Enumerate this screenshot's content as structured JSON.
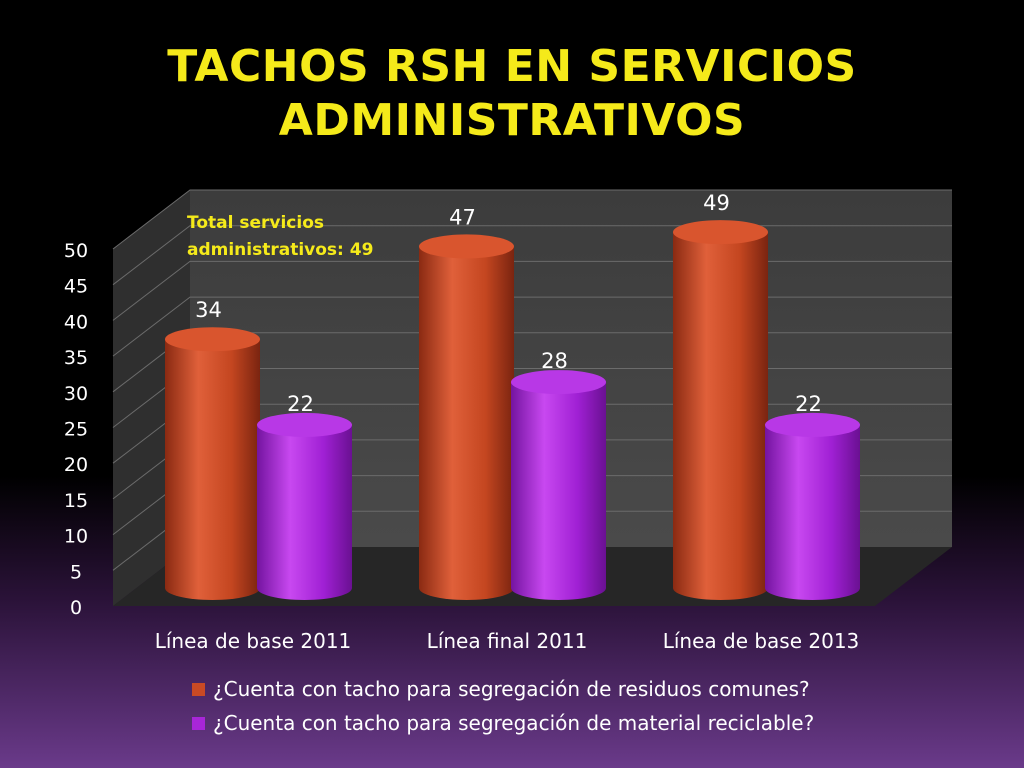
{
  "title_lines": [
    "TACHOS RSH EN SERVICIOS",
    "ADMINISTRATIVOS"
  ],
  "chart_data": {
    "type": "bar",
    "title": "TACHOS RSH EN SERVICIOS ADMINISTRATIVOS",
    "categories": [
      "Línea de base 2011",
      "Línea final 2011",
      "Línea de base 2013"
    ],
    "series": [
      {
        "name": "¿Cuenta con tacho para segregación de residuos comunes?",
        "values": [
          34,
          47,
          49
        ],
        "color": "#c94a24"
      },
      {
        "name": "¿Cuenta con tacho para segregación de material reciclable?",
        "values": [
          22,
          28,
          22
        ],
        "color": "#a826d8"
      }
    ],
    "ylim": [
      0,
      50
    ],
    "yticks": [
      "0",
      "5",
      "10",
      "15",
      "20",
      "25",
      "30",
      "35",
      "40",
      "45",
      "50"
    ],
    "grid": true,
    "legend_position": "bottom",
    "annotation_lines": [
      "Total servicios",
      "administrativos: 49"
    ],
    "data_labels": true
  },
  "colors": {
    "title": "#f5ea1a",
    "annotation": "#f5ea1a",
    "text": "#ffffff",
    "wall": "#3a3a3a",
    "floor": "#2e2e2e",
    "grid": "#6b6b6b"
  }
}
